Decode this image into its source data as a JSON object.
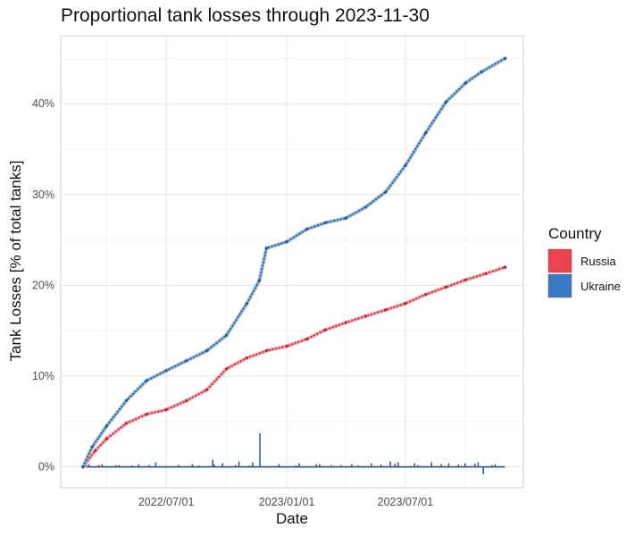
{
  "chart_data": {
    "type": "line",
    "title": "Proportional tank losses through 2023-11-30",
    "xlabel": "Date",
    "ylabel": "Tank Losses [% of total tanks]",
    "x_range": [
      "2022-01-21",
      "2023-12-28"
    ],
    "x_ticks": [
      "2022-07-01",
      "2023-01-01",
      "2023-07-01"
    ],
    "x_tick_labels": [
      "2022/07/01",
      "2023/01/01",
      "2023/07/01"
    ],
    "ylim": [
      -2.3,
      47.5
    ],
    "y_ticks": [
      0,
      10,
      20,
      30,
      40
    ],
    "y_tick_labels": [
      "0%",
      "10%",
      "20%",
      "30%",
      "40%"
    ],
    "grid": true,
    "legend": {
      "title": "Country",
      "position": "right",
      "entries": [
        {
          "name": "Russia",
          "color": "#e8434f"
        },
        {
          "name": "Ukraine",
          "color": "#3a7bc8"
        }
      ]
    },
    "series": [
      {
        "name": "Russia",
        "kind": "cumulative",
        "color": "#c81e2e",
        "smooth_color": "#f2a0a4",
        "x": [
          "2022-02-24",
          "2022-03-15",
          "2022-04-01",
          "2022-05-01",
          "2022-06-01",
          "2022-07-01",
          "2022-08-01",
          "2022-09-01",
          "2022-10-01",
          "2022-11-01",
          "2022-12-01",
          "2023-01-01",
          "2023-02-01",
          "2023-03-01",
          "2023-04-01",
          "2023-05-01",
          "2023-06-01",
          "2023-07-01",
          "2023-08-01",
          "2023-09-01",
          "2023-10-01",
          "2023-11-01",
          "2023-11-30"
        ],
        "y": [
          0.0,
          1.8,
          3.1,
          4.8,
          5.8,
          6.3,
          7.3,
          8.5,
          10.8,
          12.0,
          12.8,
          13.3,
          14.1,
          15.1,
          15.9,
          16.6,
          17.3,
          18.0,
          19.0,
          19.8,
          20.6,
          21.3,
          22.0
        ]
      },
      {
        "name": "Ukraine",
        "kind": "cumulative",
        "color": "#1f5a9c",
        "smooth_color": "#8cb0d0",
        "x": [
          "2022-02-24",
          "2022-03-10",
          "2022-04-01",
          "2022-05-01",
          "2022-06-01",
          "2022-07-01",
          "2022-08-01",
          "2022-09-01",
          "2022-10-01",
          "2022-11-01",
          "2022-11-20",
          "2022-12-01",
          "2023-01-01",
          "2023-02-01",
          "2023-03-01",
          "2023-04-01",
          "2023-05-01",
          "2023-06-01",
          "2023-07-01",
          "2023-08-01",
          "2023-09-01",
          "2023-10-01",
          "2023-10-25",
          "2023-11-30"
        ],
        "y": [
          0.0,
          2.2,
          4.5,
          7.3,
          9.5,
          10.6,
          11.7,
          12.8,
          14.5,
          18.0,
          20.5,
          24.1,
          24.8,
          26.2,
          26.9,
          27.4,
          28.6,
          30.3,
          33.2,
          36.8,
          40.2,
          42.3,
          43.5,
          45.0
        ]
      },
      {
        "name": "Russia",
        "kind": "daily",
        "color": "#c81e2e",
        "x": [
          "2022-03-05",
          "2022-03-20",
          "2022-04-15",
          "2022-05-10",
          "2022-06-05",
          "2022-07-10",
          "2022-08-20",
          "2022-09-12",
          "2022-10-15",
          "2022-11-05",
          "2022-12-10",
          "2023-01-15",
          "2023-02-20",
          "2023-03-25",
          "2023-04-20",
          "2023-05-25",
          "2023-06-15",
          "2023-07-20",
          "2023-08-25",
          "2023-09-20",
          "2023-10-15",
          "2023-11-10"
        ],
        "y": [
          0.3,
          0.2,
          0.2,
          0.15,
          0.2,
          0.1,
          0.15,
          0.3,
          0.2,
          0.15,
          0.1,
          0.15,
          0.3,
          0.2,
          0.15,
          0.25,
          0.35,
          0.2,
          0.3,
          0.25,
          0.35,
          0.2
        ]
      },
      {
        "name": "Ukraine",
        "kind": "daily",
        "color": "#1f5a9c",
        "x": [
          "2022-03-01",
          "2022-03-25",
          "2022-04-20",
          "2022-05-20",
          "2022-06-15",
          "2022-07-20",
          "2022-08-10",
          "2022-09-10",
          "2022-09-25",
          "2022-10-20",
          "2022-11-10",
          "2022-11-21",
          "2022-12-20",
          "2023-01-20",
          "2023-02-15",
          "2023-03-10",
          "2023-04-10",
          "2023-05-10",
          "2023-06-08",
          "2023-06-20",
          "2023-07-15",
          "2023-08-10",
          "2023-09-05",
          "2023-09-30",
          "2023-10-20",
          "2023-10-28",
          "2023-11-15"
        ],
        "y": [
          0.4,
          0.3,
          0.2,
          0.3,
          0.5,
          0.2,
          0.3,
          0.8,
          0.4,
          0.6,
          0.5,
          3.7,
          0.3,
          0.4,
          0.3,
          0.2,
          0.3,
          0.4,
          0.6,
          0.5,
          0.4,
          0.5,
          0.4,
          0.4,
          0.5,
          -0.8,
          0.3
        ]
      }
    ]
  }
}
